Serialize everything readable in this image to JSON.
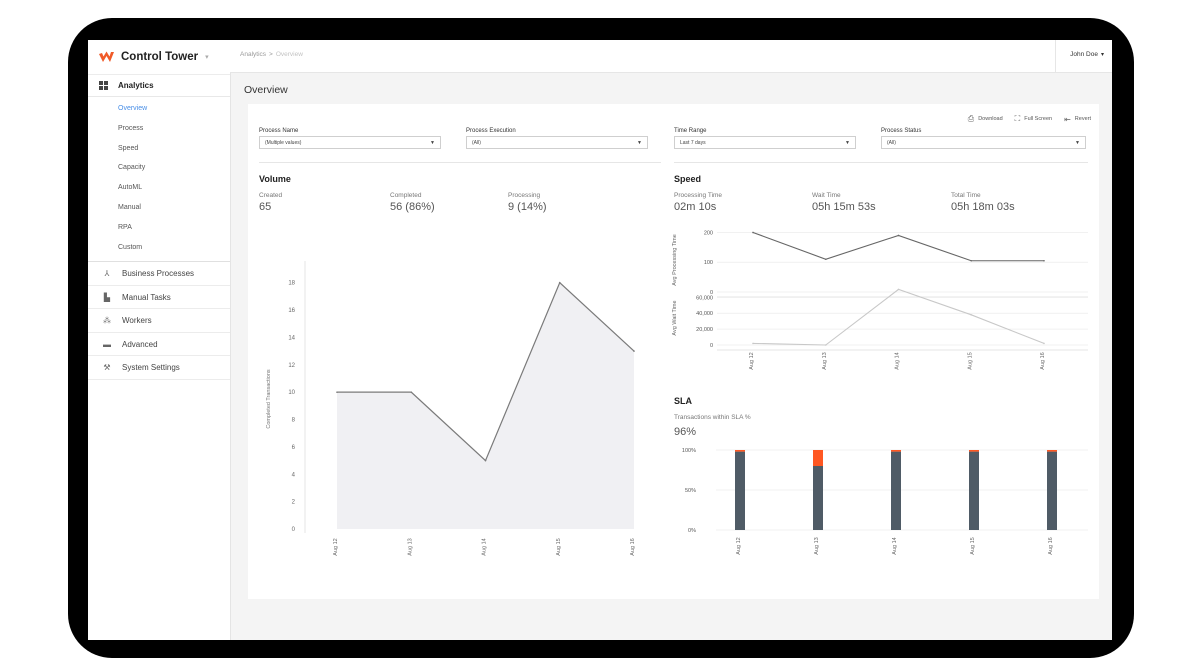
{
  "app": {
    "name": "Control Tower",
    "caret": "▾",
    "logo_color": "#f05a28"
  },
  "sidebar": {
    "section": "Analytics",
    "sub_items": [
      {
        "label": "Overview",
        "active": true
      },
      {
        "label": "Process"
      },
      {
        "label": "Speed"
      },
      {
        "label": "Capacity"
      },
      {
        "label": "AutoML"
      },
      {
        "label": "Manual"
      },
      {
        "label": "RPA"
      },
      {
        "label": "Custom"
      }
    ],
    "main_items": [
      {
        "label": "Business Processes",
        "icon": "hierarchy-icon"
      },
      {
        "label": "Manual Tasks",
        "icon": "document-icon"
      },
      {
        "label": "Workers",
        "icon": "people-icon"
      },
      {
        "label": "Advanced",
        "icon": "briefcase-icon"
      },
      {
        "label": "System Settings",
        "icon": "wrench-icon"
      }
    ]
  },
  "topbar": {
    "breadcrumb_root": "Analytics",
    "breadcrumb_sep": ">",
    "breadcrumb_current": "Overview",
    "user": "John Doe",
    "user_caret": "▾"
  },
  "page": {
    "title": "Overview"
  },
  "toolbar": {
    "download": "Download",
    "fullscreen": "Full Screen",
    "revert": "Revert"
  },
  "filters": [
    {
      "label": "Process Name",
      "value": "(Multiple values)"
    },
    {
      "label": "Process Execution",
      "value": "(All)"
    },
    {
      "label": "Time Range",
      "value": "Last 7 days"
    },
    {
      "label": "Process Status",
      "value": "(All)"
    }
  ],
  "volume": {
    "title": "Volume",
    "kpis": [
      {
        "label": "Created",
        "value": "65"
      },
      {
        "label": "Completed",
        "value": "56 (86%)"
      },
      {
        "label": "Processing",
        "value": "9 (14%)"
      }
    ]
  },
  "speed": {
    "title": "Speed",
    "kpis": [
      {
        "label": "Processing Time",
        "value": "02m 10s"
      },
      {
        "label": "Wait Time",
        "value": "05h 15m 53s"
      },
      {
        "label": "Total Time",
        "value": "05h 18m 03s"
      }
    ]
  },
  "sla": {
    "title": "SLA",
    "subtitle": "Transactions within SLA %",
    "value": "96%"
  },
  "colors": {
    "accent": "#4a8fe7",
    "bar": "#4f5b66",
    "breach": "#ff5722",
    "line": "#7a7a7a",
    "area": "#f0f0f3"
  },
  "chart_data": [
    {
      "type": "area",
      "ylabel": "Completed Transactions",
      "categories": [
        "Aug 12",
        "Aug 13",
        "Aug 14",
        "Aug 15",
        "Aug 16"
      ],
      "yticks": [
        "0",
        "2",
        "4",
        "6",
        "8",
        "10",
        "12",
        "14",
        "16",
        "18"
      ],
      "ylim": [
        0,
        19
      ],
      "values": [
        10,
        10,
        5,
        18,
        13
      ],
      "grid": false
    },
    {
      "type": "line",
      "ylabel": "Avg Processing Time",
      "categories": [
        "Aug 12",
        "Aug 13",
        "Aug 14",
        "Aug 15",
        "Aug 16"
      ],
      "yticks": [
        "0",
        "100",
        "200"
      ],
      "ylim": [
        0,
        215
      ],
      "values": [
        200,
        110,
        190,
        105,
        105
      ],
      "grid": true
    },
    {
      "type": "line",
      "ylabel": "Avg Wait Time",
      "categories": [
        "Aug 12",
        "Aug 13",
        "Aug 14",
        "Aug 15",
        "Aug 16"
      ],
      "yticks": [
        "0",
        "20,000",
        "40,000",
        "60,000"
      ],
      "ylim": [
        0,
        68000
      ],
      "values": [
        2000,
        0,
        70000,
        38000,
        2000
      ],
      "grid": true
    },
    {
      "type": "bar",
      "stacked": true,
      "categories": [
        "Aug 12",
        "Aug 13",
        "Aug 14",
        "Aug 15",
        "Aug 16"
      ],
      "yticks": [
        "0%",
        "50%",
        "100%"
      ],
      "ylim": [
        0,
        100
      ],
      "series": [
        {
          "values": [
            98,
            80,
            98,
            98,
            98
          ]
        },
        {
          "values": [
            2,
            20,
            2,
            2,
            2
          ]
        }
      ],
      "grid": true
    }
  ]
}
